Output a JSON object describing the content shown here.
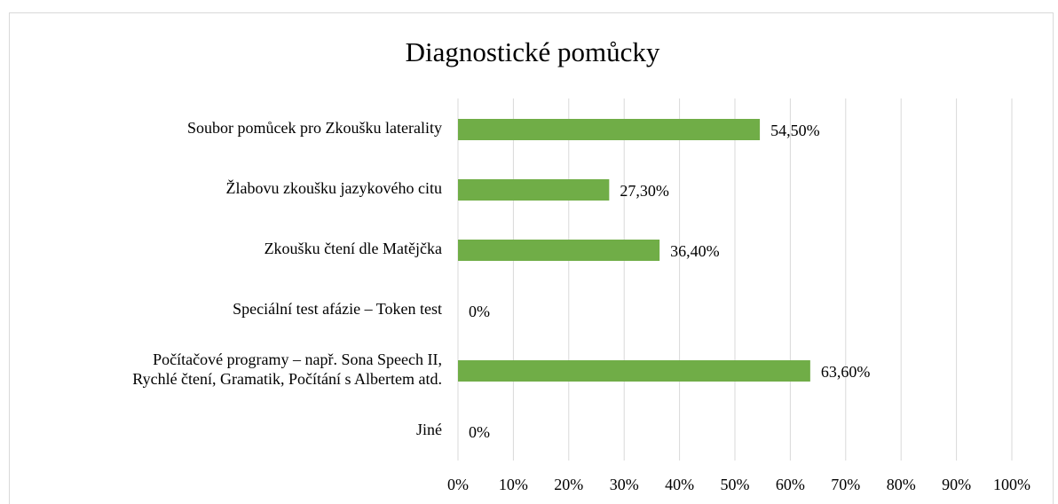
{
  "chart_data": {
    "type": "bar",
    "orientation": "horizontal",
    "title": "Diagnostické pomůcky",
    "categories": [
      "Soubor pomůcek pro Zkoušku laterality",
      "Žlabovu zkoušku jazykového citu",
      "Zkoušku čtení dle Matějčka",
      "Speciální test afázie – Token test",
      "Počítačové programy – např. Sona Speech II,\nRychlé čtení, Gramatik, Počítání s Albertem atd.",
      "Jiné"
    ],
    "values": [
      54.5,
      27.3,
      36.4,
      0,
      63.6,
      0
    ],
    "value_labels": [
      "54,50%",
      "27,30%",
      "36,40%",
      "0%",
      "63,60%",
      "0%"
    ],
    "color": "#70ad47",
    "xlim": [
      0,
      100
    ],
    "xticks": [
      {
        "value": 0,
        "label": "0%"
      },
      {
        "value": 10,
        "label": "10%"
      },
      {
        "value": 20,
        "label": "20%"
      },
      {
        "value": 30,
        "label": "30%"
      },
      {
        "value": 40,
        "label": "40%"
      },
      {
        "value": 50,
        "label": "50%"
      },
      {
        "value": 60,
        "label": "60%"
      },
      {
        "value": 70,
        "label": "70%"
      },
      {
        "value": 80,
        "label": "80%"
      },
      {
        "value": 90,
        "label": "90%"
      },
      {
        "value": 100,
        "label": "100%"
      }
    ],
    "grid": true
  }
}
